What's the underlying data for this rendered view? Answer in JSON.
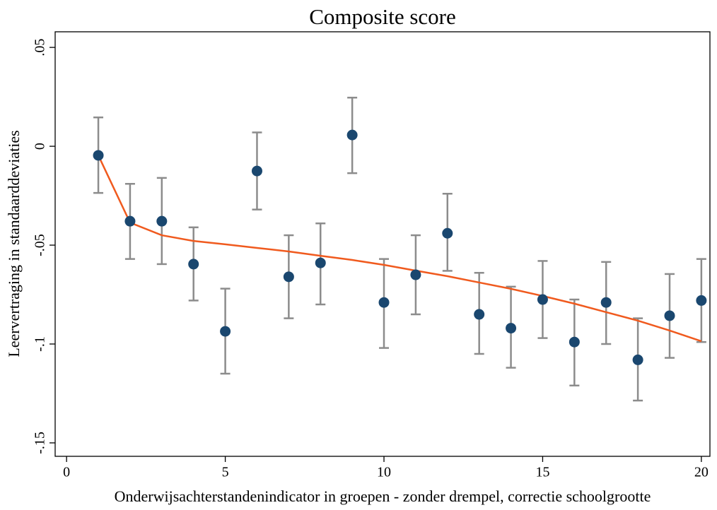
{
  "chart_data": {
    "type": "scatter",
    "title": "Composite score",
    "x_label": "Onderwijsachterstandenindicator in groepen - zonder drempel, correctie schoolgrootte",
    "y_label": "Leervertraging in standaarddeviaties",
    "x": [
      1,
      2,
      3,
      4,
      5,
      6,
      7,
      8,
      9,
      10,
      11,
      12,
      13,
      14,
      15,
      16,
      17,
      18,
      19,
      20
    ],
    "points": {
      "color": "#1a476f",
      "error_color": "#8c8c8c",
      "values": [
        -0.0046,
        -0.0379,
        -0.0379,
        -0.0596,
        -0.0936,
        -0.0125,
        -0.066,
        -0.059,
        0.0057,
        -0.079,
        -0.065,
        -0.044,
        -0.085,
        -0.092,
        -0.0775,
        -0.099,
        -0.079,
        -0.108,
        -0.0857,
        -0.078
      ],
      "lower": [
        -0.0236,
        -0.057,
        -0.0596,
        -0.078,
        -0.115,
        -0.032,
        -0.087,
        -0.08,
        -0.0136,
        -0.102,
        -0.085,
        -0.063,
        -0.105,
        -0.112,
        -0.097,
        -0.121,
        -0.1,
        -0.1286,
        -0.107,
        -0.099
      ],
      "upper": [
        0.0146,
        -0.019,
        -0.016,
        -0.041,
        -0.072,
        0.007,
        -0.045,
        -0.039,
        0.0246,
        -0.057,
        -0.045,
        -0.024,
        -0.064,
        -0.071,
        -0.058,
        -0.0775,
        -0.0585,
        -0.087,
        -0.0646,
        -0.057
      ]
    },
    "fit": {
      "color": "#f05a1e",
      "values": [
        -0.0046,
        -0.0386,
        -0.045,
        -0.0479,
        -0.0496,
        -0.0514,
        -0.0532,
        -0.0554,
        -0.0575,
        -0.06,
        -0.0629,
        -0.0657,
        -0.0689,
        -0.0721,
        -0.0757,
        -0.0796,
        -0.0839,
        -0.0882,
        -0.0932,
        -0.0986
      ]
    },
    "xlim": [
      -0.36,
      20.27
    ],
    "ylim": [
      -0.1568,
      0.0579
    ],
    "xticks": [
      0,
      5,
      10,
      15,
      20
    ],
    "yticks": [
      {
        "value": 0.05,
        "label": ".05"
      },
      0,
      {
        "value": -0.05,
        "label": "-.05"
      },
      {
        "value": -0.1,
        "label": "-.1"
      },
      {
        "value": -0.15,
        "label": "-.15"
      }
    ]
  }
}
